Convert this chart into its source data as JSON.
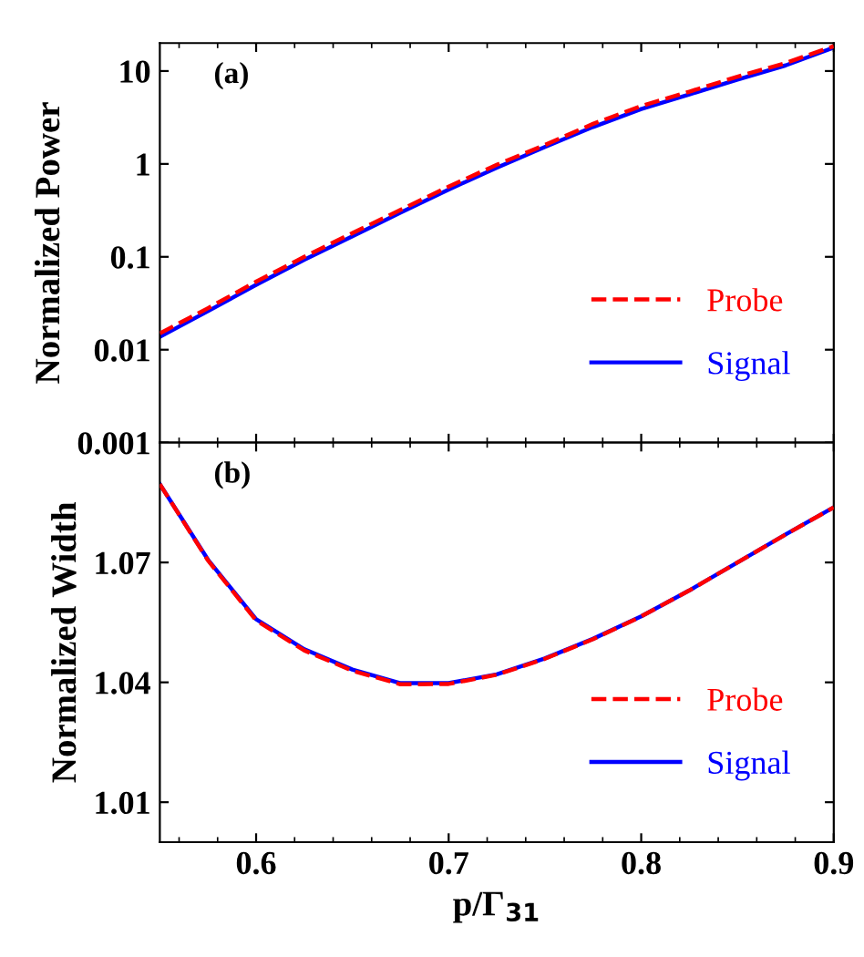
{
  "chart_data": [
    {
      "type": "line",
      "ylabel": "Normalized Power",
      "annotations": [
        "(a)"
      ],
      "log": "y",
      "xlim": [
        0.55,
        0.9
      ],
      "xticks": [
        0.6,
        0.7,
        0.8,
        0.9
      ],
      "ylim": [
        0.001,
        20
      ],
      "yticks": [
        0.001,
        0.01,
        0.1,
        1,
        10
      ],
      "tick_labels": "y",
      "legend": "lower right",
      "grid": false,
      "x": [
        0.55,
        0.575,
        0.6,
        0.625,
        0.65,
        0.675,
        0.7,
        0.725,
        0.75,
        0.775,
        0.8,
        0.825,
        0.85,
        0.875,
        0.9
      ],
      "series": [
        {
          "name": "Probe",
          "color": "#ff0000",
          "line_style": "dashed",
          "values": [
            0.015,
            0.028,
            0.054,
            0.1,
            0.18,
            0.32,
            0.57,
            0.98,
            1.6,
            2.7,
            4.2,
            6.0,
            8.7,
            12.2,
            18.5
          ]
        },
        {
          "name": "Signal",
          "color": "#0000ff",
          "line_style": "solid",
          "values": [
            0.0138,
            0.026,
            0.05,
            0.093,
            0.166,
            0.3,
            0.53,
            0.91,
            1.52,
            2.5,
            3.9,
            5.6,
            8.1,
            11.5,
            17.9
          ]
        }
      ]
    },
    {
      "type": "line",
      "xlabel": "p/Γ$_{31}$",
      "ylabel": "Normalized Width",
      "annotations": [
        "(b)"
      ],
      "xlim": [
        0.55,
        0.9
      ],
      "xticks": [
        0.6,
        0.7,
        0.8,
        0.9
      ],
      "ylim": [
        1.0,
        1.1
      ],
      "yticks": [
        1.01,
        1.04,
        1.07
      ],
      "legend": "lower right",
      "grid": false,
      "x": [
        0.55,
        0.575,
        0.6,
        0.625,
        0.65,
        0.675,
        0.7,
        0.725,
        0.75,
        0.775,
        0.8,
        0.825,
        0.85,
        0.875,
        0.9
      ],
      "series": [
        {
          "name": "Probe",
          "color": "#ff0000",
          "line_style": "dashed",
          "values": [
            1.0896,
            1.0705,
            1.0555,
            1.048,
            1.0429,
            1.0395,
            1.0396,
            1.0419,
            1.0459,
            1.0508,
            1.0565,
            1.063,
            1.07,
            1.077,
            1.0838
          ]
        },
        {
          "name": "Signal",
          "color": "#0000ff",
          "line_style": "solid",
          "values": [
            1.0896,
            1.0707,
            1.0558,
            1.0483,
            1.0432,
            1.0398,
            1.0398,
            1.042,
            1.046,
            1.0509,
            1.0565,
            1.063,
            1.07,
            1.077,
            1.0838
          ]
        }
      ]
    }
  ]
}
